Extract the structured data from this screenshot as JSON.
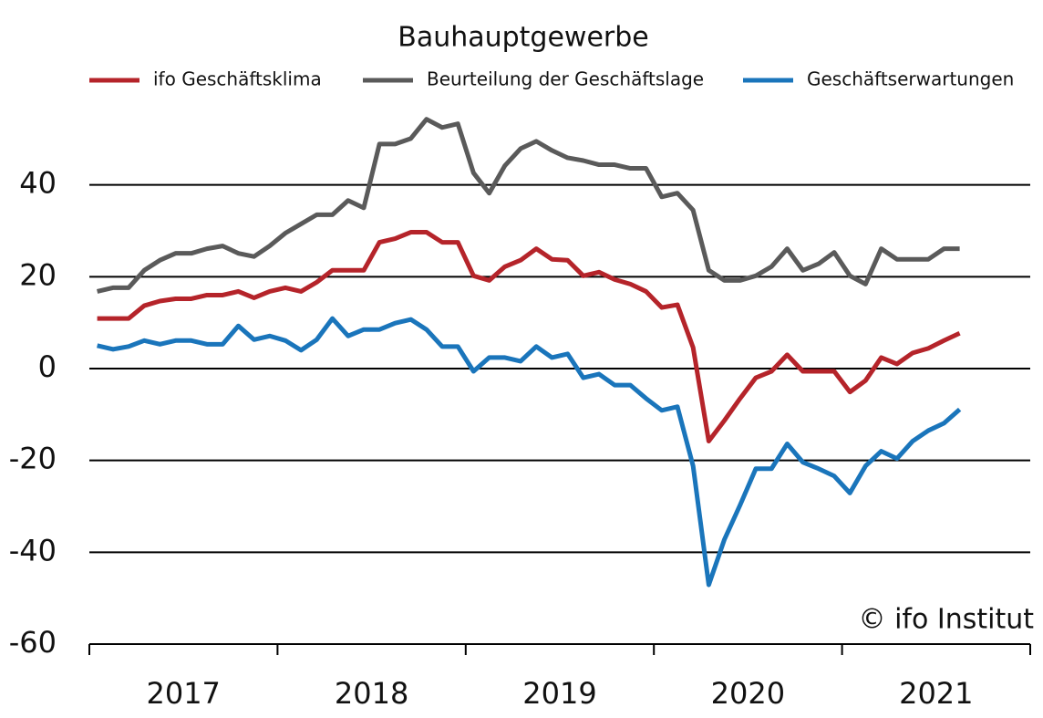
{
  "chart_data": {
    "type": "line",
    "title": "Bauhauptgewerbe",
    "annotation": "© ifo Institut",
    "categories": [
      null,
      null,
      null,
      null,
      null,
      null,
      "2017",
      null,
      null,
      null,
      null,
      null,
      null,
      null,
      null,
      null,
      null,
      null,
      "2018",
      null,
      null,
      null,
      null,
      null,
      null,
      null,
      null,
      null,
      null,
      null,
      "2019",
      null,
      null,
      null,
      null,
      null,
      null,
      null,
      null,
      null,
      null,
      null,
      "2020",
      null,
      null,
      null,
      null,
      null,
      null,
      null,
      null,
      null,
      null,
      null,
      "2021",
      null
    ],
    "series": [
      {
        "name": "ifo Geschäftsklima",
        "color": "#b5242a",
        "values": [
          10.9,
          10.9,
          10.9,
          13.7,
          14.7,
          15.2,
          15.2,
          16.0,
          16.0,
          16.8,
          15.4,
          16.8,
          17.6,
          16.8,
          18.8,
          21.4,
          21.4,
          21.4,
          27.5,
          28.3,
          29.7,
          29.7,
          27.5,
          27.5,
          20.2,
          19.2,
          22.2,
          23.6,
          26.1,
          23.8,
          23.6,
          20.2,
          21.0,
          19.4,
          18.4,
          16.8,
          13.3,
          13.9,
          4.6,
          -15.8,
          -11.3,
          -6.5,
          -2.0,
          -0.6,
          3.0,
          -0.6,
          -0.6,
          -0.6,
          -5.1,
          -2.6,
          2.4,
          1.0,
          3.4,
          4.4,
          6.1,
          7.7
        ]
      },
      {
        "name": "Beurteilung der Geschäftslage",
        "color": "#5a5a5a",
        "values": [
          16.8,
          17.6,
          17.6,
          21.4,
          23.6,
          25.1,
          25.1,
          26.1,
          26.7,
          25.1,
          24.4,
          26.7,
          29.5,
          31.5,
          33.5,
          33.5,
          36.6,
          35.0,
          48.9,
          48.9,
          50.1,
          54.3,
          52.5,
          53.3,
          42.6,
          38.2,
          44.2,
          47.9,
          49.5,
          47.5,
          45.9,
          45.3,
          44.4,
          44.4,
          43.6,
          43.6,
          37.4,
          38.2,
          34.5,
          21.4,
          19.2,
          19.2,
          20.2,
          22.2,
          26.1,
          21.4,
          22.8,
          25.3,
          20.2,
          18.4,
          26.1,
          23.8,
          23.8,
          23.8,
          26.1,
          26.1
        ]
      },
      {
        "name": "Geschäftserwartungen",
        "color": "#1a75bb",
        "values": [
          5.0,
          4.2,
          4.8,
          6.1,
          5.3,
          6.1,
          6.1,
          5.3,
          5.3,
          9.3,
          6.3,
          7.1,
          6.1,
          4.0,
          6.3,
          10.9,
          7.1,
          8.5,
          8.5,
          9.9,
          10.7,
          8.5,
          4.8,
          4.8,
          -0.6,
          2.4,
          2.4,
          1.6,
          4.8,
          2.4,
          3.2,
          -2.0,
          -1.2,
          -3.6,
          -3.6,
          -6.5,
          -9.1,
          -8.3,
          -21.2,
          -47.1,
          -37.2,
          -29.7,
          -21.8,
          -21.8,
          -16.4,
          -20.4,
          -21.8,
          -23.4,
          -27.1,
          -21.2,
          -18.0,
          -19.6,
          -15.8,
          -13.5,
          -11.9,
          -8.9
        ]
      }
    ],
    "ylim": [
      -60,
      60
    ],
    "yticks": [
      -60,
      -40,
      -20,
      0,
      20,
      40
    ],
    "grid": true
  }
}
